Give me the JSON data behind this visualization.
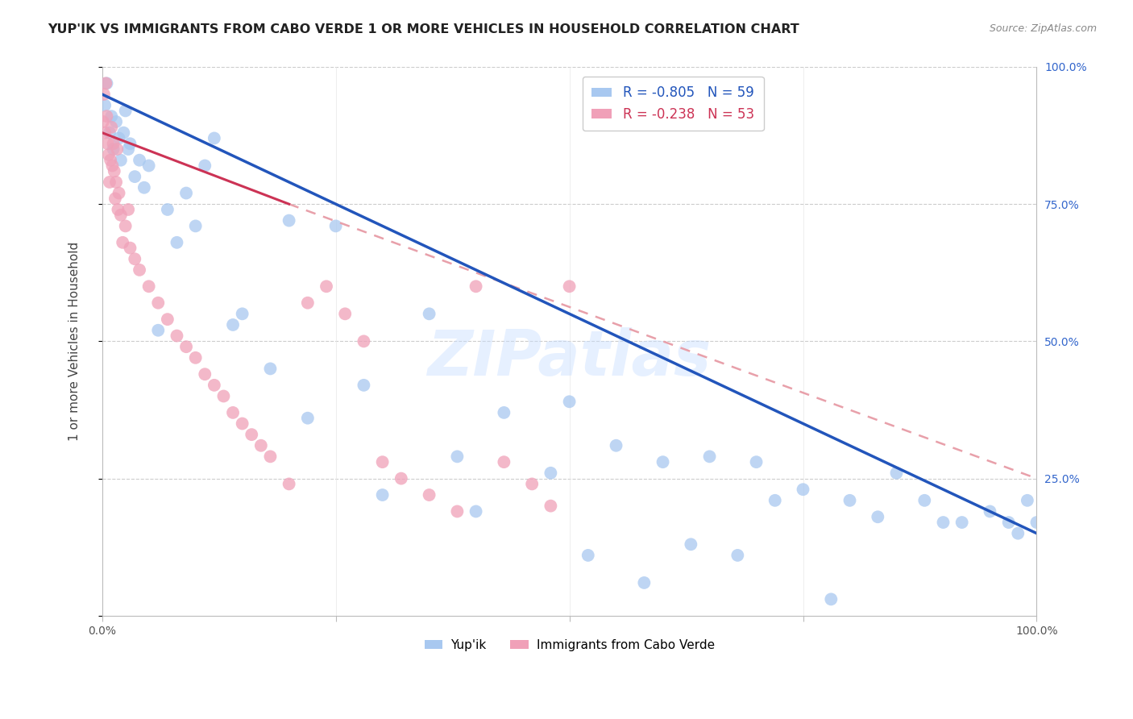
{
  "title": "YUP'IK VS IMMIGRANTS FROM CABO VERDE 1 OR MORE VEHICLES IN HOUSEHOLD CORRELATION CHART",
  "source": "Source: ZipAtlas.com",
  "ylabel": "1 or more Vehicles in Household",
  "legend_label1": "Yup'ik",
  "legend_label2": "Immigrants from Cabo Verde",
  "R1": -0.805,
  "N1": 59,
  "R2": -0.238,
  "N2": 53,
  "color_blue": "#A8C8F0",
  "color_pink": "#F0A0B8",
  "line_blue": "#2255BB",
  "line_pink": "#CC3355",
  "line_pink_dash": "#E8A0AA",
  "background": "#FFFFFF",
  "watermark": "ZIPatlas",
  "blue_x": [
    0.3,
    0.5,
    0.8,
    1.0,
    1.2,
    1.5,
    1.8,
    2.0,
    2.3,
    2.5,
    2.8,
    3.0,
    3.5,
    4.0,
    4.5,
    5.0,
    6.0,
    7.0,
    8.0,
    9.0,
    10.0,
    11.0,
    12.0,
    14.0,
    15.0,
    18.0,
    20.0,
    22.0,
    25.0,
    28.0,
    30.0,
    35.0,
    38.0,
    40.0,
    43.0,
    48.0,
    50.0,
    52.0,
    55.0,
    58.0,
    60.0,
    63.0,
    65.0,
    68.0,
    70.0,
    72.0,
    75.0,
    78.0,
    80.0,
    83.0,
    85.0,
    88.0,
    90.0,
    92.0,
    95.0,
    97.0,
    98.0,
    99.0,
    100.0
  ],
  "blue_y": [
    93.0,
    97.0,
    88.0,
    91.0,
    85.0,
    90.0,
    87.0,
    83.0,
    88.0,
    92.0,
    85.0,
    86.0,
    80.0,
    83.0,
    78.0,
    82.0,
    52.0,
    74.0,
    68.0,
    77.0,
    71.0,
    82.0,
    87.0,
    53.0,
    55.0,
    45.0,
    72.0,
    36.0,
    71.0,
    42.0,
    22.0,
    55.0,
    29.0,
    19.0,
    37.0,
    26.0,
    39.0,
    11.0,
    31.0,
    6.0,
    28.0,
    13.0,
    29.0,
    11.0,
    28.0,
    21.0,
    23.0,
    3.0,
    21.0,
    18.0,
    26.0,
    21.0,
    17.0,
    17.0,
    19.0,
    17.0,
    15.0,
    21.0,
    17.0
  ],
  "pink_x": [
    0.1,
    0.2,
    0.3,
    0.4,
    0.5,
    0.6,
    0.7,
    0.8,
    0.9,
    1.0,
    1.1,
    1.2,
    1.3,
    1.4,
    1.5,
    1.6,
    1.7,
    1.8,
    2.0,
    2.2,
    2.5,
    2.8,
    3.0,
    3.5,
    4.0,
    5.0,
    6.0,
    7.0,
    8.0,
    9.0,
    10.0,
    11.0,
    12.0,
    13.0,
    14.0,
    15.0,
    16.0,
    17.0,
    18.0,
    20.0,
    22.0,
    24.0,
    26.0,
    28.0,
    30.0,
    32.0,
    35.0,
    38.0,
    40.0,
    43.0,
    46.0,
    48.0,
    50.0
  ],
  "pink_y": [
    90.0,
    95.0,
    88.0,
    97.0,
    91.0,
    86.0,
    84.0,
    79.0,
    83.0,
    89.0,
    82.0,
    86.0,
    81.0,
    76.0,
    79.0,
    85.0,
    74.0,
    77.0,
    73.0,
    68.0,
    71.0,
    74.0,
    67.0,
    65.0,
    63.0,
    60.0,
    57.0,
    54.0,
    51.0,
    49.0,
    47.0,
    44.0,
    42.0,
    40.0,
    37.0,
    35.0,
    33.0,
    31.0,
    29.0,
    24.0,
    57.0,
    60.0,
    55.0,
    50.0,
    28.0,
    25.0,
    22.0,
    19.0,
    60.0,
    28.0,
    24.0,
    20.0,
    60.0
  ]
}
